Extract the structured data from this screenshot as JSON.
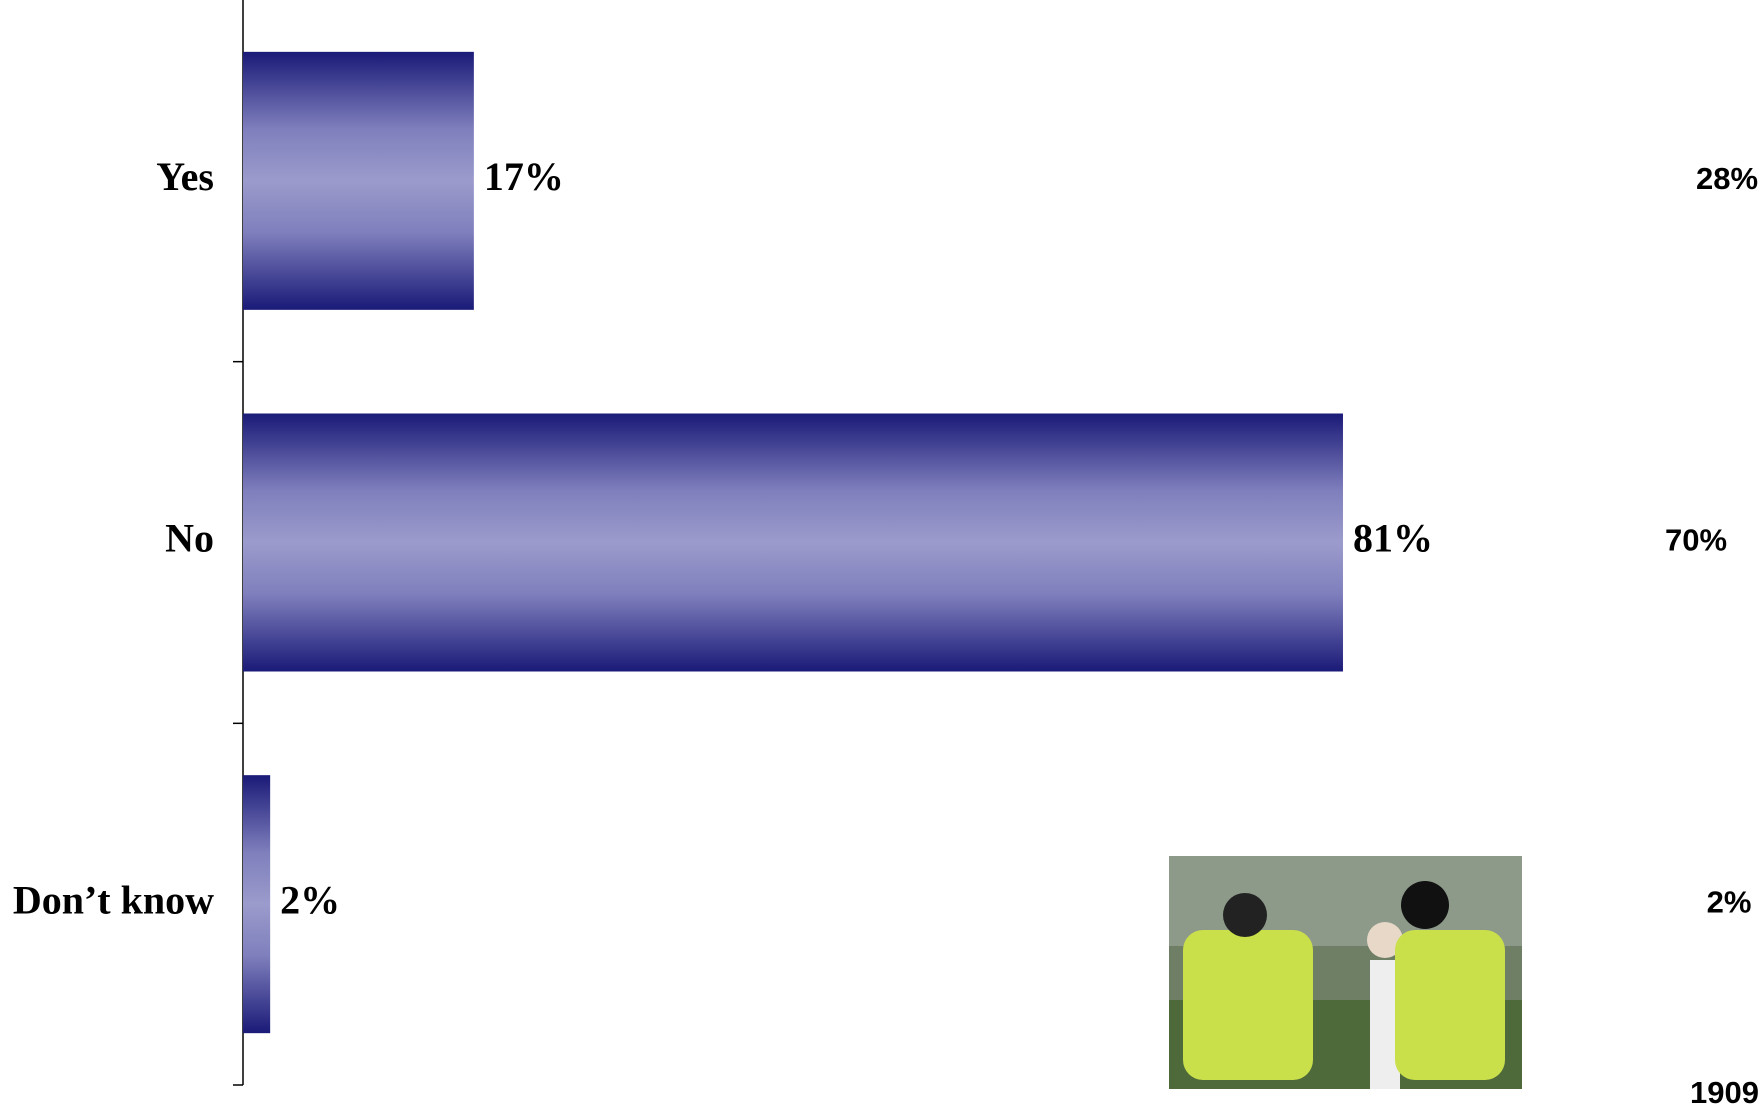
{
  "chart_data": {
    "type": "bar",
    "orientation": "horizontal",
    "categories": [
      "Yes",
      "No",
      "Don’t know"
    ],
    "values": [
      17,
      81,
      2
    ],
    "value_labels": [
      "17%",
      "81%",
      "2%"
    ],
    "xlim": [
      0,
      100
    ],
    "color": "#1a1a78",
    "side_column": {
      "values": [
        28,
        70,
        2
      ],
      "value_labels": [
        "28%",
        "70%",
        "2%"
      ],
      "footer": "1909"
    }
  }
}
